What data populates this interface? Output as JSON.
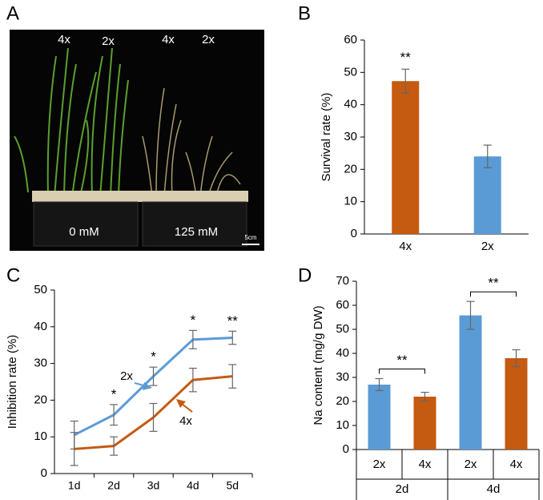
{
  "photo": {
    "panel": "A",
    "labels": [
      "4x",
      "2x",
      "4x",
      "2x"
    ],
    "conditions": [
      "0 mM",
      "125 mM"
    ],
    "scale_bar": "5cm"
  },
  "chart_data": [
    {
      "panel": "B",
      "type": "bar",
      "categories": [
        "4x",
        "2x"
      ],
      "values": [
        47.3,
        24
      ],
      "errors": [
        3.7,
        3.5
      ],
      "colors": [
        "#c55a11",
        "#5b9bd5"
      ],
      "significance": [
        "**",
        null
      ],
      "y_label": "Survival rate (%)",
      "ylim": [
        0,
        60
      ],
      "yticks": [
        0,
        10,
        20,
        30,
        40,
        50,
        60
      ]
    },
    {
      "panel": "C",
      "type": "line",
      "categories": [
        "1d",
        "2d",
        "3d",
        "4d",
        "5d"
      ],
      "series": [
        {
          "name": "2x",
          "color": "#5b9bd5",
          "values": [
            10.5,
            16,
            26.5,
            36.5,
            37
          ],
          "errors": [
            3.8,
            2.8,
            2.5,
            2.5,
            1.8
          ]
        },
        {
          "name": "4x",
          "color": "#c55a11",
          "values": [
            6.7,
            7.5,
            15.3,
            25.5,
            26.5
          ],
          "errors": [
            4.5,
            2.5,
            3.8,
            3.2,
            3.2
          ]
        }
      ],
      "significance": [
        null,
        "*",
        "*",
        "*",
        "**"
      ],
      "y_label": "Inhibition rate (%)",
      "ylim": [
        0,
        50
      ],
      "yticks": [
        0,
        10,
        20,
        30,
        40,
        50
      ]
    },
    {
      "panel": "D",
      "type": "grouped_bar",
      "categories": [
        "2d",
        "4d"
      ],
      "series": [
        {
          "name": "2x",
          "color": "#5b9bd5",
          "values": [
            27,
            55.8
          ],
          "errors": [
            2.5,
            5.8
          ]
        },
        {
          "name": "4x",
          "color": "#c55a11",
          "values": [
            22,
            38
          ],
          "errors": [
            1.8,
            3.5
          ]
        }
      ],
      "significance": [
        "**",
        "**"
      ],
      "y_label": "Na content (mg/g DW)",
      "ylim": [
        0,
        70
      ],
      "yticks": [
        0,
        10,
        20,
        30,
        40,
        50,
        60,
        70
      ]
    }
  ]
}
